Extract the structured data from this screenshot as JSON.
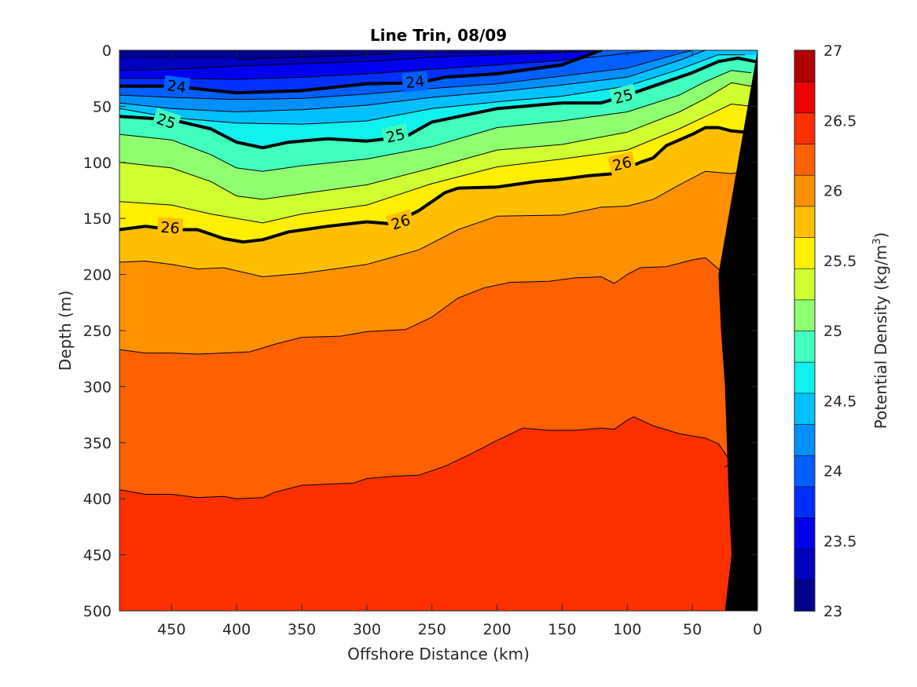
{
  "chart_data": {
    "type": "contour",
    "title": "Line Trin, 08/09",
    "xlabel": "Offshore Distance (km)",
    "ylabel": "Depth (m)",
    "colorbar_label_prefix": "Potential Density (kg/m",
    "colorbar_label_sup": "3",
    "colorbar_label_suffix": ")",
    "x_reversed": true,
    "y_reversed": true,
    "xlim": [
      0,
      490
    ],
    "ylim": [
      0,
      500
    ],
    "clim": [
      23,
      27
    ],
    "x_ticks": [
      "450",
      "400",
      "350",
      "300",
      "250",
      "200",
      "150",
      "100",
      "50",
      "0"
    ],
    "x_tick_values": [
      450,
      400,
      350,
      300,
      250,
      200,
      150,
      100,
      50,
      0
    ],
    "y_ticks": [
      "0",
      "50",
      "100",
      "150",
      "200",
      "250",
      "300",
      "350",
      "400",
      "450",
      "500"
    ],
    "y_tick_values": [
      0,
      50,
      100,
      150,
      200,
      250,
      300,
      350,
      400,
      450,
      500
    ],
    "colorbar_ticks": [
      "23",
      "23.5",
      "24",
      "24.5",
      "25",
      "25.5",
      "26",
      "26.5",
      "27"
    ],
    "colorbar_tick_values": [
      23,
      23.5,
      24,
      24.5,
      25,
      25.5,
      26,
      26.5,
      27
    ],
    "contour_levels": [
      23.25,
      23.5,
      23.75,
      24,
      24.25,
      24.5,
      24.75,
      25,
      25.25,
      25.5,
      25.75,
      26,
      26.25,
      26.5,
      26.75
    ],
    "level_colors": [
      "#00008f",
      "#0000c0",
      "#0000f0",
      "#0030ff",
      "#0060ff",
      "#0090ff",
      "#00c0ff",
      "#10f0ef",
      "#40ffbf",
      "#8fff70",
      "#cfff30",
      "#ffef00",
      "#ffbf00",
      "#ff9000",
      "#ff6000",
      "#ff3000",
      "#f00000",
      "#ae0000"
    ],
    "colorbar_colors": [
      "#00008f",
      "#0000c0",
      "#0000f0",
      "#0030ff",
      "#0060ff",
      "#0090ff",
      "#00c0ff",
      "#10f0ef",
      "#40ffbf",
      "#8fff70",
      "#cfff30",
      "#ffef00",
      "#ffbf00",
      "#ff9000",
      "#ff6000",
      "#ff3000",
      "#f00000",
      "#ae0000"
    ],
    "isolines": [
      {
        "level": 23.25,
        "bold": false,
        "points": [
          [
            400,
            8
          ],
          [
            350,
            6
          ],
          [
            320,
            5
          ],
          [
            280,
            3
          ]
        ]
      },
      {
        "level": 23.5,
        "bold": false,
        "points": [
          [
            490,
            18
          ],
          [
            450,
            17
          ],
          [
            400,
            14
          ],
          [
            350,
            12
          ],
          [
            300,
            10
          ],
          [
            250,
            6
          ],
          [
            200,
            4
          ],
          [
            150,
            2
          ],
          [
            120,
            0
          ]
        ]
      },
      {
        "level": 23.75,
        "bold": false,
        "points": [
          [
            490,
            25
          ],
          [
            450,
            25
          ],
          [
            400,
            26
          ],
          [
            350,
            24
          ],
          [
            300,
            21
          ],
          [
            250,
            17
          ],
          [
            200,
            13
          ],
          [
            150,
            9
          ],
          [
            110,
            4
          ],
          [
            80,
            0
          ]
        ]
      },
      {
        "level": 24,
        "bold": true,
        "label": "24",
        "points": [
          [
            490,
            32
          ],
          [
            450,
            32
          ],
          [
            400,
            38
          ],
          [
            350,
            36
          ],
          [
            300,
            30
          ],
          [
            260,
            29
          ],
          [
            240,
            24
          ],
          [
            200,
            21
          ],
          [
            150,
            13
          ],
          [
            120,
            0
          ]
        ]
      },
      {
        "level": 24.25,
        "bold": false,
        "points": [
          [
            490,
            40
          ],
          [
            450,
            42
          ],
          [
            400,
            44
          ],
          [
            350,
            43
          ],
          [
            300,
            39
          ],
          [
            250,
            34
          ],
          [
            200,
            30
          ],
          [
            150,
            23
          ],
          [
            100,
            16
          ],
          [
            70,
            6
          ],
          [
            50,
            0
          ]
        ]
      },
      {
        "level": 24.5,
        "bold": false,
        "points": [
          [
            490,
            47
          ],
          [
            450,
            52
          ],
          [
            400,
            55
          ],
          [
            350,
            53
          ],
          [
            300,
            49
          ],
          [
            250,
            42
          ],
          [
            200,
            37
          ],
          [
            150,
            31
          ],
          [
            100,
            24
          ],
          [
            60,
            9
          ],
          [
            40,
            0
          ]
        ]
      },
      {
        "level": 24.75,
        "bold": false,
        "points": [
          [
            490,
            52
          ],
          [
            450,
            60
          ],
          [
            400,
            65
          ],
          [
            350,
            66
          ],
          [
            300,
            63
          ],
          [
            250,
            52
          ],
          [
            200,
            46
          ],
          [
            150,
            41
          ],
          [
            100,
            32
          ],
          [
            60,
            17
          ],
          [
            30,
            4
          ],
          [
            10,
            4
          ]
        ]
      },
      {
        "level": 25,
        "bold": true,
        "label": "25",
        "points": [
          [
            490,
            59
          ],
          [
            450,
            62
          ],
          [
            420,
            70
          ],
          [
            400,
            82
          ],
          [
            380,
            87
          ],
          [
            360,
            82
          ],
          [
            330,
            79
          ],
          [
            300,
            81
          ],
          [
            270,
            77
          ],
          [
            250,
            64
          ],
          [
            200,
            52
          ],
          [
            150,
            47
          ],
          [
            120,
            47
          ],
          [
            100,
            40
          ],
          [
            80,
            32
          ],
          [
            50,
            20
          ],
          [
            30,
            10
          ],
          [
            15,
            7
          ],
          [
            2,
            10
          ]
        ]
      },
      {
        "level": 25.25,
        "bold": false,
        "points": [
          [
            490,
            75
          ],
          [
            450,
            80
          ],
          [
            420,
            93
          ],
          [
            400,
            105
          ],
          [
            380,
            108
          ],
          [
            350,
            103
          ],
          [
            300,
            97
          ],
          [
            250,
            86
          ],
          [
            200,
            69
          ],
          [
            150,
            63
          ],
          [
            100,
            55
          ],
          [
            60,
            40
          ],
          [
            40,
            28
          ],
          [
            20,
            18
          ],
          [
            5,
            20
          ]
        ]
      },
      {
        "level": 25.5,
        "bold": false,
        "points": [
          [
            490,
            100
          ],
          [
            450,
            105
          ],
          [
            420,
            117
          ],
          [
            400,
            130
          ],
          [
            380,
            133
          ],
          [
            350,
            128
          ],
          [
            300,
            120
          ],
          [
            250,
            105
          ],
          [
            200,
            89
          ],
          [
            150,
            84
          ],
          [
            100,
            73
          ],
          [
            60,
            55
          ],
          [
            40,
            43
          ],
          [
            20,
            29
          ],
          [
            5,
            32
          ]
        ]
      },
      {
        "level": 25.75,
        "bold": false,
        "points": [
          [
            490,
            135
          ],
          [
            450,
            138
          ],
          [
            420,
            146
          ],
          [
            400,
            150
          ],
          [
            380,
            154
          ],
          [
            350,
            146
          ],
          [
            300,
            138
          ],
          [
            250,
            119
          ],
          [
            200,
            104
          ],
          [
            150,
            97
          ],
          [
            100,
            89
          ],
          [
            60,
            70
          ],
          [
            40,
            59
          ],
          [
            20,
            48
          ],
          [
            5,
            50
          ]
        ]
      },
      {
        "level": 26,
        "bold": true,
        "label": "26",
        "points": [
          [
            490,
            160
          ],
          [
            470,
            157
          ],
          [
            450,
            160
          ],
          [
            430,
            160
          ],
          [
            410,
            168
          ],
          [
            395,
            171
          ],
          [
            380,
            169
          ],
          [
            360,
            162
          ],
          [
            330,
            157
          ],
          [
            300,
            153
          ],
          [
            280,
            155
          ],
          [
            260,
            143
          ],
          [
            240,
            127
          ],
          [
            230,
            123
          ],
          [
            200,
            122
          ],
          [
            170,
            117
          ],
          [
            150,
            115
          ],
          [
            130,
            112
          ],
          [
            110,
            110
          ],
          [
            90,
            100
          ],
          [
            80,
            96
          ],
          [
            70,
            85
          ],
          [
            50,
            75
          ],
          [
            40,
            69
          ],
          [
            30,
            69
          ],
          [
            20,
            72
          ],
          [
            10,
            73
          ]
        ]
      },
      {
        "level": 26.25,
        "bold": false,
        "points": [
          [
            490,
            189
          ],
          [
            470,
            188
          ],
          [
            450,
            191
          ],
          [
            430,
            195
          ],
          [
            410,
            194
          ],
          [
            380,
            202
          ],
          [
            350,
            199
          ],
          [
            300,
            191
          ],
          [
            260,
            178
          ],
          [
            230,
            160
          ],
          [
            200,
            148
          ],
          [
            150,
            147
          ],
          [
            120,
            140
          ],
          [
            100,
            139
          ],
          [
            80,
            133
          ],
          [
            60,
            120
          ],
          [
            40,
            108
          ],
          [
            20,
            110
          ],
          [
            10,
            108
          ]
        ]
      },
      {
        "level": 26.5,
        "bold": false,
        "points": [
          [
            490,
            267
          ],
          [
            470,
            270
          ],
          [
            450,
            270
          ],
          [
            430,
            271
          ],
          [
            410,
            270
          ],
          [
            390,
            269
          ],
          [
            370,
            262
          ],
          [
            350,
            256
          ],
          [
            320,
            255
          ],
          [
            300,
            251
          ],
          [
            270,
            249
          ],
          [
            250,
            238
          ],
          [
            230,
            221
          ],
          [
            210,
            212
          ],
          [
            190,
            207
          ],
          [
            160,
            206
          ],
          [
            140,
            203
          ],
          [
            120,
            202
          ],
          [
            110,
            208
          ],
          [
            100,
            200
          ],
          [
            90,
            194
          ],
          [
            70,
            193
          ],
          [
            50,
            187
          ],
          [
            40,
            185
          ],
          [
            30,
            195
          ],
          [
            20,
            208
          ],
          [
            15,
            210
          ]
        ]
      },
      {
        "level": 26.75,
        "bold": false,
        "points": [
          [
            490,
            392
          ],
          [
            470,
            396
          ],
          [
            450,
            396
          ],
          [
            430,
            399
          ],
          [
            410,
            398
          ],
          [
            400,
            400
          ],
          [
            380,
            399
          ],
          [
            370,
            394
          ],
          [
            350,
            388
          ],
          [
            330,
            387
          ],
          [
            310,
            386
          ],
          [
            300,
            382
          ],
          [
            280,
            380
          ],
          [
            260,
            379
          ],
          [
            240,
            371
          ],
          [
            220,
            360
          ],
          [
            200,
            348
          ],
          [
            180,
            337
          ],
          [
            160,
            339
          ],
          [
            140,
            339
          ],
          [
            120,
            337
          ],
          [
            110,
            338
          ],
          [
            100,
            330
          ],
          [
            95,
            327
          ],
          [
            80,
            335
          ],
          [
            60,
            342
          ],
          [
            40,
            346
          ],
          [
            30,
            351
          ],
          [
            20,
            368
          ],
          [
            25,
            372
          ]
        ]
      }
    ],
    "contour_labels": [
      {
        "text": "24",
        "x": 446,
        "y": 32,
        "angle": 7
      },
      {
        "text": "24",
        "x": 263,
        "y": 28,
        "angle": -6
      },
      {
        "text": "25",
        "x": 454,
        "y": 63,
        "angle": 18
      },
      {
        "text": "25",
        "x": 278,
        "y": 76,
        "angle": -12
      },
      {
        "text": "25",
        "x": 103,
        "y": 41,
        "angle": -15
      },
      {
        "text": "26",
        "x": 451,
        "y": 158,
        "angle": 4
      },
      {
        "text": "26",
        "x": 274,
        "y": 153,
        "angle": -18
      },
      {
        "text": "26",
        "x": 104,
        "y": 101,
        "angle": -14
      }
    ],
    "land_mask": {
      "color": "#000000",
      "points": [
        [
          0,
          0
        ],
        [
          0,
          500
        ],
        [
          25,
          500
        ],
        [
          20,
          450
        ],
        [
          22,
          400
        ],
        [
          25,
          300
        ],
        [
          28,
          250
        ],
        [
          30,
          200
        ],
        [
          3,
          20
        ],
        [
          0,
          0
        ]
      ]
    }
  }
}
